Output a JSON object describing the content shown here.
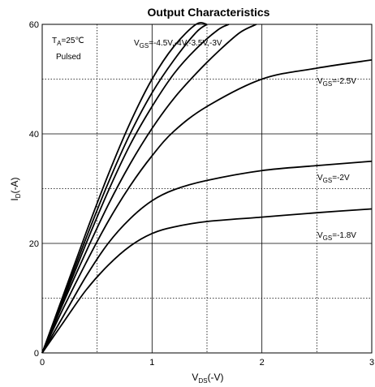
{
  "chart_data": {
    "type": "line",
    "title": "Output Characteristics",
    "xlabel": {
      "main": "V",
      "sub": "DS",
      "tail": "(-V)"
    },
    "ylabel": {
      "main": "I",
      "sub": "D",
      "tail": "(-A)"
    },
    "xlim": [
      0,
      3
    ],
    "ylim": [
      0,
      60
    ],
    "x_ticks": [
      "0",
      "1",
      "2",
      "3"
    ],
    "y_ticks": [
      "0",
      "20",
      "40",
      "60"
    ],
    "grid": {
      "major_solid": true,
      "minor_dotted": true
    },
    "conditions": {
      "temp_main": "T",
      "temp_sub": "A",
      "temp_tail": "=25℃",
      "pulsed": "Pulsed"
    },
    "curve_labels": [
      {
        "main": "V",
        "sub": "GS",
        "tail": "=-4.5V,-4V,-3.5V,-3V"
      },
      {
        "main": "V",
        "sub": "GS",
        "tail": "=-2.5V"
      },
      {
        "main": "V",
        "sub": "GS",
        "tail": "=-2V"
      },
      {
        "main": "V",
        "sub": "GS",
        "tail": "=-1.8V"
      }
    ],
    "series": [
      {
        "name": "-4.5V",
        "x": [
          0,
          0.2,
          0.4,
          0.6,
          0.8,
          1.0,
          1.2,
          1.4,
          1.5
        ],
        "y": [
          0,
          11,
          22,
          32.5,
          42,
          50,
          56,
          60,
          60
        ]
      },
      {
        "name": "-4V",
        "x": [
          0,
          0.2,
          0.4,
          0.6,
          0.8,
          1.0,
          1.2,
          1.4,
          1.5
        ],
        "y": [
          0,
          10.5,
          21,
          31,
          40,
          47.5,
          53.5,
          58.5,
          60
        ]
      },
      {
        "name": "-3.5V",
        "x": [
          0,
          0.2,
          0.4,
          0.6,
          0.8,
          1.0,
          1.2,
          1.4,
          1.6,
          1.7
        ],
        "y": [
          0,
          10,
          20,
          29.5,
          38,
          45,
          51,
          55.5,
          59,
          60
        ]
      },
      {
        "name": "-3V",
        "x": [
          0,
          0.2,
          0.4,
          0.6,
          0.8,
          1.0,
          1.2,
          1.4,
          1.6,
          1.8,
          1.95
        ],
        "y": [
          0,
          9.5,
          18.5,
          27,
          34.5,
          41,
          46.5,
          51,
          55,
          58.5,
          60
        ]
      },
      {
        "name": "-2.5V",
        "x": [
          0,
          0.2,
          0.4,
          0.6,
          0.8,
          1.0,
          1.2,
          1.5,
          2.0,
          2.5,
          3.0
        ],
        "y": [
          0,
          8.5,
          16.5,
          24,
          30.5,
          36,
          40.5,
          45,
          50,
          52,
          53.5
        ]
      },
      {
        "name": "-2V",
        "x": [
          0,
          0.2,
          0.4,
          0.6,
          0.8,
          1.0,
          1.2,
          1.5,
          2.0,
          2.5,
          3.0
        ],
        "y": [
          0,
          7,
          14,
          20,
          24.5,
          27.8,
          29.8,
          31.5,
          33.3,
          34.2,
          35
        ]
      },
      {
        "name": "-1.8V",
        "x": [
          0,
          0.2,
          0.4,
          0.6,
          0.8,
          1.0,
          1.2,
          1.5,
          2.0,
          2.5,
          3.0
        ],
        "y": [
          0,
          5.8,
          11.5,
          16,
          19.5,
          21.8,
          23,
          24,
          24.8,
          25.6,
          26.3
        ]
      }
    ]
  }
}
